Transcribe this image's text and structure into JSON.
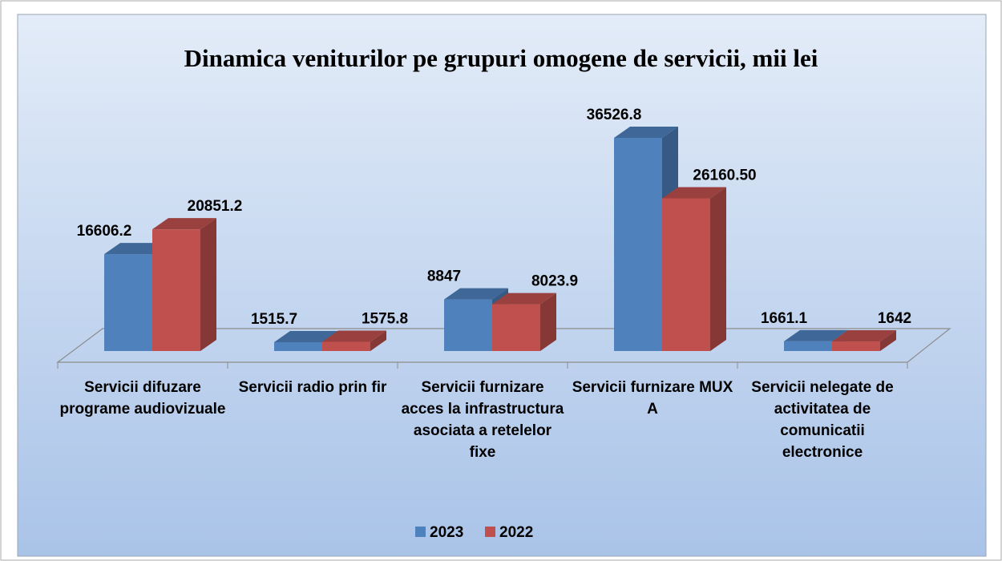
{
  "chart_data": {
    "type": "bar3d",
    "title": "Dinamica veniturilor pe grupuri omogene de servicii, mii lei",
    "categories": [
      "Servicii difuzare programe audiovizuale",
      "Servicii radio prin fir",
      "Servicii furnizare acces la infrastructura asociata a retelelor fixe",
      "Servicii furnizare MUX A",
      "Servicii nelegate de activitatea de comunicatii electronice"
    ],
    "series": [
      {
        "name": "2023",
        "color": "#4f81bd",
        "values": [
          16606.2,
          1515.7,
          8847,
          36526.8,
          1661.1
        ],
        "value_labels": [
          "16606.2",
          "1515.7",
          "8847",
          "36526.8",
          "1661.1"
        ]
      },
      {
        "name": "2022",
        "color": "#c0504d",
        "values": [
          20851.2,
          1575.8,
          8023.9,
          26160.5,
          1642
        ],
        "value_labels": [
          "20851.2",
          "1575.8",
          "8023.9",
          "26160.50",
          "1642"
        ]
      }
    ],
    "legend": "bottom"
  }
}
